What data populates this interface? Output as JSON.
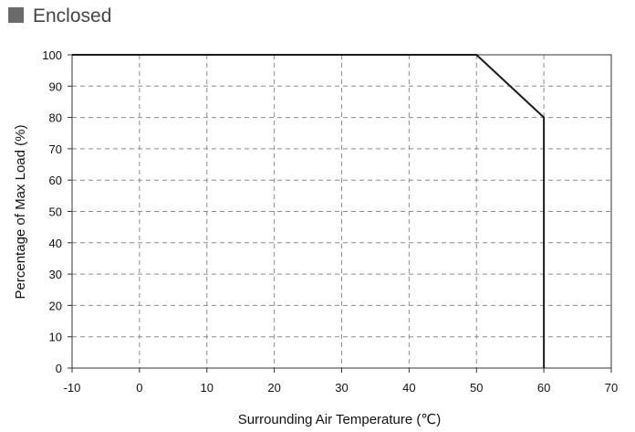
{
  "chart_data": {
    "type": "line",
    "title": "Enclosed",
    "xlabel": "Surrounding Air Temperature (℃)",
    "ylabel": "Percentage of Max Load (%)",
    "xlim": [
      -10,
      70
    ],
    "ylim": [
      0,
      100
    ],
    "xticks": [
      -10,
      0,
      10,
      20,
      30,
      40,
      50,
      60,
      70
    ],
    "yticks": [
      0,
      10,
      20,
      30,
      40,
      50,
      60,
      70,
      80,
      90,
      100
    ],
    "grid": "dashed",
    "legend": "none",
    "series": [
      {
        "x": [
          -10,
          50,
          60,
          60
        ],
        "y": [
          100,
          100,
          80,
          0
        ]
      }
    ]
  },
  "colors": {
    "title_marker": "#6b6b6b",
    "line": "#1a1a1a",
    "grid": "#8c8c8c",
    "axis": "#333333"
  }
}
